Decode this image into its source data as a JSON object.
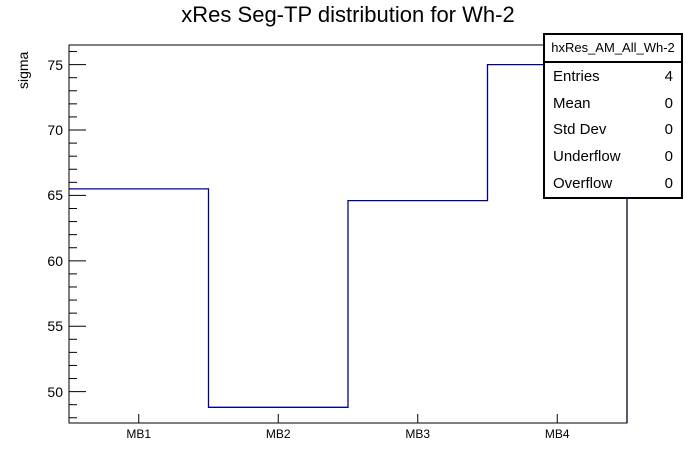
{
  "chart_data": {
    "type": "step-histogram",
    "title": "xRes Seg-TP distribution for Wh-2",
    "categories": [
      "MB1",
      "MB2",
      "MB3",
      "MB4"
    ],
    "values": [
      65.5,
      48.8,
      64.6,
      75.0
    ],
    "xlabel": "",
    "ylabel": "sigma",
    "ylim": [
      47.6,
      76.5
    ],
    "y_major_ticks": [
      50,
      55,
      60,
      65,
      70,
      75
    ],
    "y_minor_step": 1,
    "grid": false,
    "legend_position": "none",
    "line_color": "#000099",
    "frame_color": "#000000",
    "background_color": "#ffffff"
  },
  "stats_box": {
    "header": "hxRes_AM_All_Wh-2",
    "rows": [
      {
        "label": "Entries",
        "value": "4"
      },
      {
        "label": "Mean",
        "value": "0"
      },
      {
        "label": "Std Dev",
        "value": "0"
      },
      {
        "label": "Underflow",
        "value": "0"
      },
      {
        "label": "Overflow",
        "value": "0"
      }
    ]
  }
}
